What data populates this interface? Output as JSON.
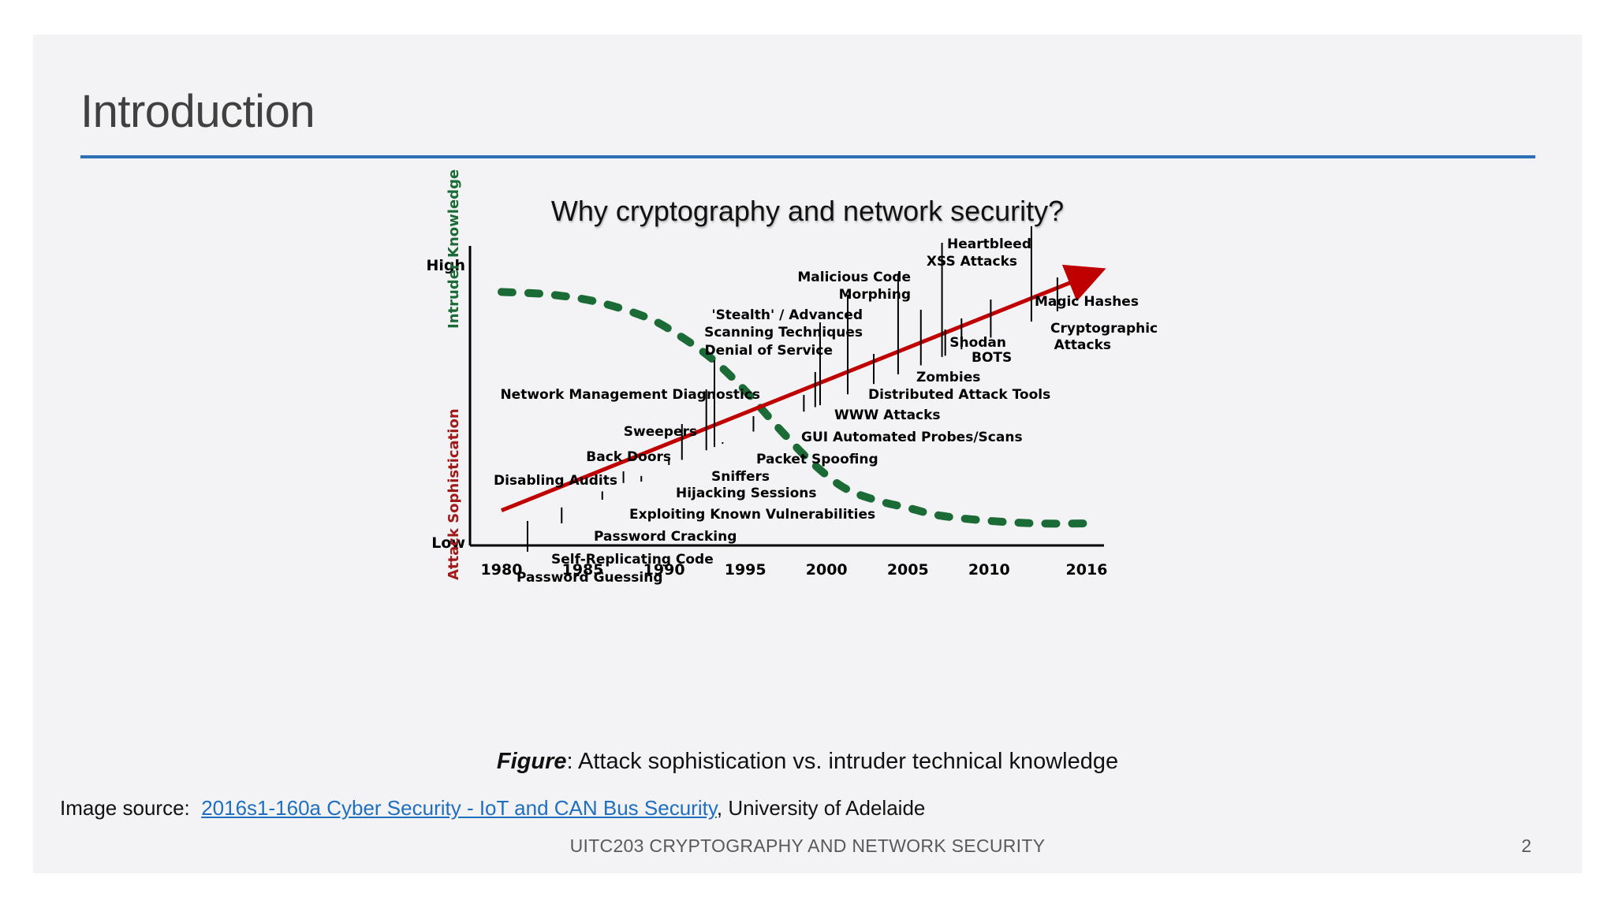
{
  "slide": {
    "title": "Introduction",
    "heading": "Why cryptography and network security?",
    "caption_bold": "Figure",
    "caption_rest": ": Attack sophistication vs. intruder technical knowledge",
    "source_prefix": "Image source:",
    "source_link": "2016s1-160a Cyber Security - IoT and CAN Bus Security",
    "source_suffix": ", University of Adelaide",
    "footer": "UITC203 CRYPTOGRAPHY AND NETWORK SECURITY",
    "page_number": "2"
  },
  "colors": {
    "accent_rule": "#2e6fb7",
    "arrow": "#c00000",
    "knowledge_curve": "#1a6b35",
    "link": "#1f6fc0"
  },
  "chart_data": {
    "type": "line",
    "title": "",
    "x_ticks": [
      "1980",
      "1985",
      "1990",
      "1995",
      "2000",
      "2005",
      "2010",
      "2016"
    ],
    "y_ticks": [
      "Low",
      "High"
    ],
    "xlim": [
      1980,
      2016
    ],
    "ylim": [
      0,
      100
    ],
    "ylabel_part1": "Attack Sophistication",
    "ylabel_part2": "Intruder Knowledge",
    "series": [
      {
        "name": "Attack Sophistication",
        "style": "solid-arrow",
        "x": [
          1980,
          2016
        ],
        "y": [
          8,
          97
        ]
      },
      {
        "name": "Intruder Knowledge",
        "style": "dashed",
        "x": [
          1980,
          1983,
          1986,
          1989,
          1991,
          1993,
          1995,
          1997,
          1999,
          2001,
          2003,
          2005,
          2007,
          2010,
          2013,
          2016
        ],
        "y": [
          92,
          91,
          88,
          82,
          75,
          66,
          54,
          40,
          27,
          17,
          12,
          9,
          6,
          4,
          3,
          3
        ]
      }
    ],
    "annotations": [
      {
        "label": "Password Guessing",
        "x": 1981.6,
        "tip": "below"
      },
      {
        "label": "Self-Replicating Code",
        "x": 1983.7,
        "tip": "below"
      },
      {
        "label": "Password Cracking",
        "x": 1986.2,
        "tip": "below"
      },
      {
        "label": "Disabling Audits",
        "x": 1987.5,
        "tip": "above"
      },
      {
        "label": "Exploiting Known Vulnerabilities",
        "x": 1988.6,
        "tip": "below"
      },
      {
        "label": "Back Doors",
        "x": 1991.1,
        "tip": "above"
      },
      {
        "label": "Hijacking Sessions",
        "x": 1990.3,
        "tip": "below"
      },
      {
        "label": "Sweepers",
        "x": 1992.6,
        "tip": "above"
      },
      {
        "label": "Sniffers",
        "x": 1993.6,
        "tip": "below"
      },
      {
        "label": "Network Management Diagnostics",
        "x": 1993.1,
        "tip": "above"
      },
      {
        "label": "Packet Spoofing",
        "x": 1995.5,
        "tip": "below"
      },
      {
        "label": "GUI Automated Probes/Scans",
        "x": 1998.6,
        "tip": "below"
      },
      {
        "label": "WWW Attacks",
        "x": 1999.3,
        "tip": "below"
      },
      {
        "label": "Denial of Service",
        "x": 1999.6,
        "tip": "above"
      },
      {
        "label": "'Stealth' / Advanced Scanning Techniques",
        "x": 2001.3,
        "tip": "above"
      },
      {
        "label": "Distributed Attack Tools",
        "x": 2002.9,
        "tip": "below"
      },
      {
        "label": "Zombies",
        "x": 2005.8,
        "tip": "below"
      },
      {
        "label": "Malicious Code Morphing",
        "x": 2004.4,
        "tip": "above"
      },
      {
        "label": "BOTS",
        "x": 2007.3,
        "tip": "below"
      },
      {
        "label": "Shodan",
        "x": 2008.3,
        "tip": "below"
      },
      {
        "label": "XSS Attacks",
        "x": 2007.1,
        "tip": "above"
      },
      {
        "label": "Cryptographic Attacks",
        "x": 2010.1,
        "tip": "below"
      },
      {
        "label": "Heartbleed",
        "x": 2012.6,
        "tip": "above"
      },
      {
        "label": "Magic Hashes",
        "x": 2014.2,
        "tip": "below"
      }
    ]
  }
}
